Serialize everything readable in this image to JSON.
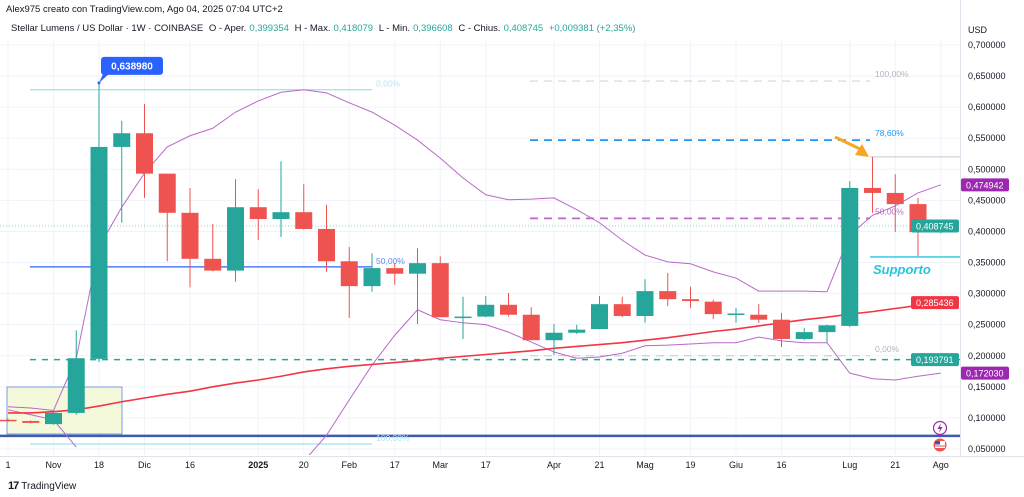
{
  "header": {
    "author_line": "Alex975 creato con TradingView.com, Ago 04, 2025 07:04 UTC+2",
    "symbol": "Stellar Lumens / US Dollar · 1W · COINBASE",
    "open_label": "O - Aper.",
    "open": "0,399354",
    "high_label": "H - Max.",
    "high": "0,418079",
    "low_label": "L - Min.",
    "low": "0,396608",
    "close_label": "C - Chius.",
    "close": "0,408745",
    "change": "+0,009381 (+2,35%)"
  },
  "footer": {
    "brand": "TradingView",
    "logo": "17"
  },
  "chart_data": {
    "type": "candlestick",
    "currency": "USD",
    "ylim": [
      0.035,
      0.72
    ],
    "y_ticks": [
      "0,700000",
      "0,650000",
      "0,600000",
      "0,550000",
      "0,500000",
      "0,450000",
      "0,400000",
      "0,350000",
      "0,300000",
      "0,250000",
      "0,200000",
      "0,150000",
      "0,100000",
      "0,050000"
    ],
    "y_tick_values": [
      0.7,
      0.65,
      0.6,
      0.55,
      0.5,
      0.45,
      0.4,
      0.35,
      0.3,
      0.25,
      0.2,
      0.15,
      0.1,
      0.05
    ],
    "x_ticks": [
      {
        "label": "1",
        "bar": 0
      },
      {
        "label": "Nov",
        "bar": 2
      },
      {
        "label": "18",
        "bar": 4
      },
      {
        "label": "Dic",
        "bar": 6
      },
      {
        "label": "16",
        "bar": 8
      },
      {
        "label": "2025",
        "bar": 11,
        "bold": true
      },
      {
        "label": "20",
        "bar": 13
      },
      {
        "label": "Feb",
        "bar": 15
      },
      {
        "label": "17",
        "bar": 17
      },
      {
        "label": "Mar",
        "bar": 19
      },
      {
        "label": "17",
        "bar": 21
      },
      {
        "label": "Apr",
        "bar": 24
      },
      {
        "label": "21",
        "bar": 26
      },
      {
        "label": "Mag",
        "bar": 28
      },
      {
        "label": "19",
        "bar": 30
      },
      {
        "label": "Giu",
        "bar": 32
      },
      {
        "label": "16",
        "bar": 34
      },
      {
        "label": "Lug",
        "bar": 37
      },
      {
        "label": "21",
        "bar": 39
      },
      {
        "label": "Ago",
        "bar": 41
      }
    ],
    "candles": [
      [
        0.097,
        0.099,
        0.094,
        0.095
      ],
      [
        0.095,
        0.096,
        0.091,
        0.092
      ],
      [
        0.09,
        0.112,
        0.089,
        0.108
      ],
      [
        0.108,
        0.241,
        0.105,
        0.196
      ],
      [
        0.195,
        0.639,
        0.19,
        0.536
      ],
      [
        0.536,
        0.578,
        0.414,
        0.558
      ],
      [
        0.558,
        0.605,
        0.454,
        0.493
      ],
      [
        0.493,
        0.493,
        0.352,
        0.43
      ],
      [
        0.43,
        0.47,
        0.31,
        0.356
      ],
      [
        0.356,
        0.412,
        0.336,
        0.337
      ],
      [
        0.337,
        0.484,
        0.319,
        0.439
      ],
      [
        0.439,
        0.468,
        0.386,
        0.42
      ],
      [
        0.42,
        0.513,
        0.391,
        0.431
      ],
      [
        0.431,
        0.476,
        0.403,
        0.404
      ],
      [
        0.404,
        0.443,
        0.335,
        0.352
      ],
      [
        0.352,
        0.375,
        0.261,
        0.312
      ],
      [
        0.312,
        0.365,
        0.303,
        0.341
      ],
      [
        0.341,
        0.349,
        0.314,
        0.332
      ],
      [
        0.332,
        0.373,
        0.251,
        0.349
      ],
      [
        0.349,
        0.36,
        0.262,
        0.262
      ],
      [
        0.262,
        0.295,
        0.227,
        0.263
      ],
      [
        0.263,
        0.296,
        0.262,
        0.282
      ],
      [
        0.282,
        0.301,
        0.263,
        0.266
      ],
      [
        0.266,
        0.278,
        0.225,
        0.225
      ],
      [
        0.225,
        0.251,
        0.201,
        0.237
      ],
      [
        0.237,
        0.25,
        0.235,
        0.242
      ],
      [
        0.243,
        0.296,
        0.243,
        0.283
      ],
      [
        0.283,
        0.295,
        0.262,
        0.264
      ],
      [
        0.264,
        0.323,
        0.253,
        0.304
      ],
      [
        0.304,
        0.333,
        0.28,
        0.291
      ],
      [
        0.291,
        0.311,
        0.277,
        0.288
      ],
      [
        0.287,
        0.29,
        0.259,
        0.267
      ],
      [
        0.266,
        0.277,
        0.253,
        0.268
      ],
      [
        0.266,
        0.283,
        0.253,
        0.258
      ],
      [
        0.258,
        0.269,
        0.214,
        0.227
      ],
      [
        0.227,
        0.245,
        0.225,
        0.238
      ],
      [
        0.238,
        0.25,
        0.221,
        0.249
      ],
      [
        0.248,
        0.481,
        0.246,
        0.47
      ],
      [
        0.47,
        0.52,
        0.43,
        0.462
      ],
      [
        0.462,
        0.492,
        0.399,
        0.444
      ],
      [
        0.444,
        0.454,
        0.36,
        0.399
      ],
      [
        0.399,
        0.418,
        0.397,
        0.409
      ]
    ],
    "ma_line": [
      0.108,
      0.108,
      0.11,
      0.113,
      0.119,
      0.126,
      0.132,
      0.138,
      0.143,
      0.15,
      0.156,
      0.161,
      0.167,
      0.174,
      0.179,
      0.183,
      0.186,
      0.189,
      0.192,
      0.196,
      0.199,
      0.202,
      0.205,
      0.208,
      0.212,
      0.215,
      0.218,
      0.221,
      0.225,
      0.229,
      0.234,
      0.239,
      0.243,
      0.248,
      0.253,
      0.258,
      0.262,
      0.267,
      0.271,
      0.276,
      0.281,
      0.285
    ],
    "upper_band": [
      0.118,
      0.116,
      0.112,
      0.196,
      0.375,
      0.439,
      0.494,
      0.536,
      0.554,
      0.566,
      0.592,
      0.61,
      0.624,
      0.628,
      0.623,
      0.607,
      0.592,
      0.571,
      0.547,
      0.518,
      0.486,
      0.459,
      0.451,
      0.452,
      0.454,
      0.435,
      0.414,
      0.386,
      0.362,
      0.351,
      0.348,
      0.335,
      0.325,
      0.304,
      0.304,
      0.304,
      0.303,
      0.394,
      0.426,
      0.441,
      0.462,
      0.475
    ],
    "lower_band": [
      0.113,
      0.105,
      0.097,
      0.053,
      null,
      null,
      null,
      null,
      null,
      null,
      null,
      null,
      null,
      0.03,
      0.072,
      0.129,
      0.185,
      0.233,
      0.274,
      0.258,
      0.253,
      0.25,
      0.238,
      0.222,
      0.206,
      0.196,
      0.198,
      0.204,
      0.216,
      0.217,
      0.219,
      0.221,
      0.221,
      0.23,
      0.224,
      0.221,
      0.221,
      0.172,
      0.163,
      0.161,
      0.167,
      0.172
    ],
    "price_labels": [
      {
        "text": "0,474942",
        "value": 0.474942,
        "color": "#9c27b0"
      },
      {
        "text": "0,408745",
        "value": 0.408745,
        "color": "#26a69a"
      },
      {
        "text": "0,285436",
        "value": 0.285436,
        "color": "#f23645"
      },
      {
        "text": "0,193791",
        "value": 0.193791,
        "color": "#26a69a"
      },
      {
        "text": "0,172030",
        "value": 0.17203,
        "color": "#9c27b0"
      }
    ],
    "high_callout": {
      "text": "0,638980",
      "value": 0.63898,
      "bar": 4
    },
    "fib_left": [
      {
        "label": "0,00%",
        "value": 0.628
      },
      {
        "label": "50,00%",
        "value": 0.343
      },
      {
        "label": "100,00%",
        "value": 0.058
      }
    ],
    "fib_right": [
      {
        "label": "100,00%",
        "value": 0.642,
        "color": "#b2b5be"
      },
      {
        "label": "78,60%",
        "value": 0.547,
        "color": "#2196f3"
      },
      {
        "label": "50,00%",
        "value": 0.421,
        "color": "#ba68c8"
      },
      {
        "label": "0,00%",
        "value": 0.2,
        "color": "#b2b5be"
      }
    ],
    "support": {
      "label": "Supporto",
      "value": 0.359
    },
    "dashed_support_value": 0.193791,
    "thick_line_value": 0.071,
    "colors": {
      "up": "#26a69a",
      "down": "#ef5350",
      "ma": "#f23645",
      "bands": "#ba68c8",
      "support": "#26c6da",
      "arrow": "#f5a623",
      "callout": "#2962ff"
    }
  }
}
